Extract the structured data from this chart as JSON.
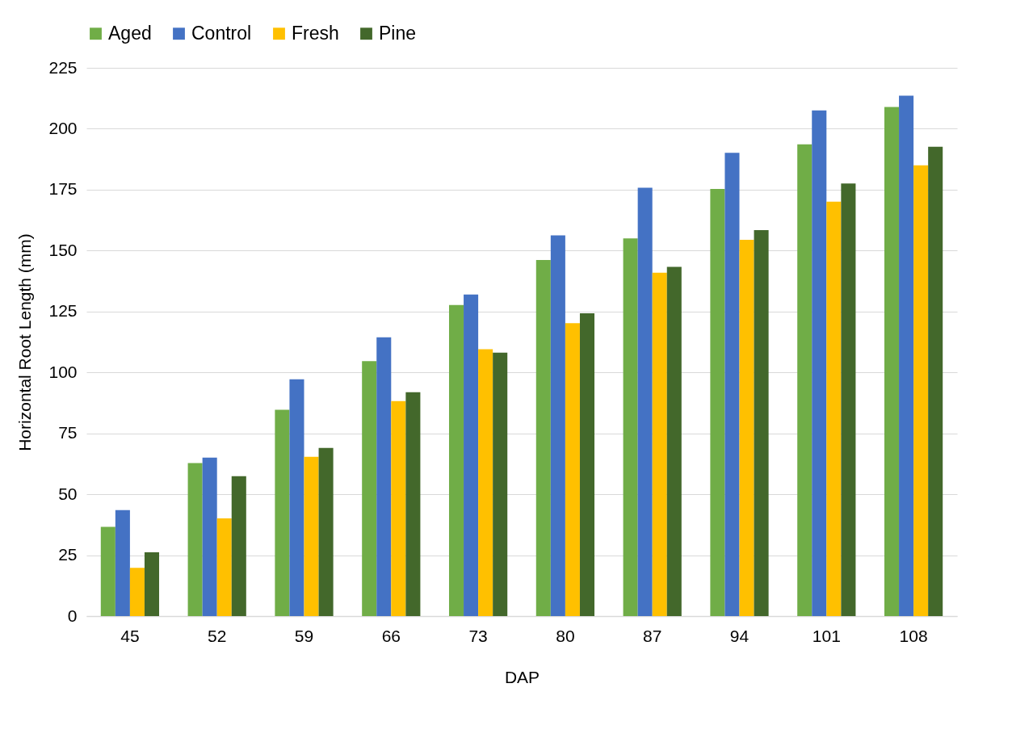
{
  "chart_data": {
    "type": "bar",
    "xlabel": "DAP",
    "ylabel": "Horizontal Root Length (mm)",
    "categories": [
      "45",
      "52",
      "59",
      "66",
      "73",
      "80",
      "87",
      "94",
      "101",
      "108"
    ],
    "series": [
      {
        "name": "Aged",
        "color": "#70ad47",
        "values": [
          36.6,
          62.8,
          84.7,
          104.6,
          127.7,
          146.1,
          155.0,
          175.3,
          193.6,
          208.9
        ]
      },
      {
        "name": "Control",
        "color": "#4472c4",
        "values": [
          43.5,
          65.0,
          97.2,
          114.4,
          132.0,
          156.2,
          175.8,
          190.1,
          207.5,
          213.6
        ]
      },
      {
        "name": "Fresh",
        "color": "#ffc000",
        "values": [
          19.8,
          40.1,
          65.4,
          88.2,
          109.5,
          120.2,
          140.9,
          154.4,
          170.1,
          185.0
        ]
      },
      {
        "name": "Pine",
        "color": "#43682b",
        "values": [
          26.2,
          57.4,
          69.0,
          91.9,
          108.1,
          124.3,
          143.3,
          158.4,
          177.5,
          192.6
        ]
      }
    ],
    "ylim": [
      0,
      225
    ],
    "yticks": [
      0,
      25,
      50,
      75,
      100,
      125,
      150,
      175,
      200,
      225
    ],
    "grid": "y",
    "legend": "top"
  }
}
